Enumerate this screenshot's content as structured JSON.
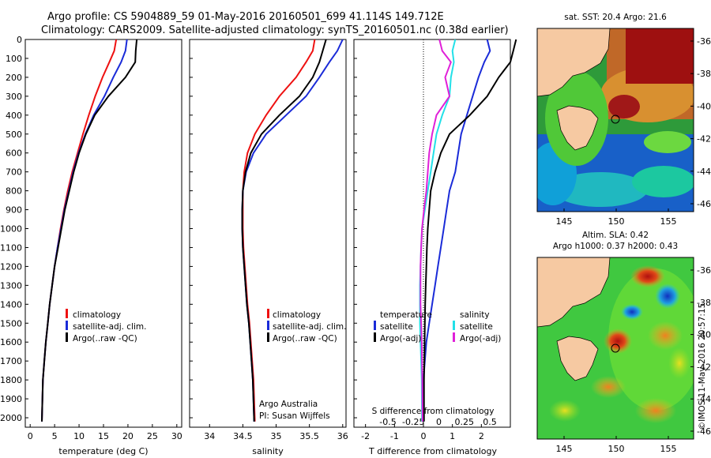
{
  "title": {
    "line1": "Argo profile: CS 5904889_59 01-May-2016 20160501_699 41.114S 149.712E",
    "line2": "Climatology: CARS2009. Satellite-adjusted climatology: synTS_20160501.nc (0.38d earlier)"
  },
  "colors": {
    "clim": "#ee1111",
    "sat": "#1a2bd8",
    "argo": "#000000",
    "sat_s": "#22e0e8",
    "argo_s": "#e020d8",
    "land": "#f6c9a2"
  },
  "chart_data": [
    {
      "type": "line",
      "panel": "temperature",
      "xlabel": "temperature (deg C)",
      "xticks": [
        0,
        5,
        10,
        15,
        20,
        25,
        30
      ],
      "xlim": [
        -1,
        31
      ],
      "ylim": [
        2050,
        0
      ],
      "yticks": [
        0,
        100,
        200,
        300,
        400,
        500,
        600,
        700,
        800,
        900,
        1000,
        1100,
        1200,
        1300,
        1400,
        1500,
        1600,
        1700,
        1800,
        1900,
        2000
      ],
      "legend": [
        "climatology",
        "satellite-adj. clim.",
        "Argo(..raw -QC)"
      ],
      "series": [
        {
          "name": "climatology",
          "color_key": "clim",
          "x": [
            17.6,
            17.2,
            16.2,
            14.8,
            13.3,
            12.0,
            10.8,
            9.7,
            8.6,
            7.7,
            6.9,
            6.2,
            5.6,
            5.0,
            4.5,
            4.0,
            3.6,
            3.2,
            2.9,
            2.6,
            2.4
          ],
          "y": [
            0,
            60,
            120,
            200,
            300,
            400,
            500,
            600,
            700,
            800,
            900,
            1000,
            1100,
            1200,
            1300,
            1400,
            1500,
            1600,
            1700,
            1800,
            2020
          ]
        },
        {
          "name": "satellite-adj. clim.",
          "color_key": "sat",
          "x": [
            19.8,
            19.5,
            18.6,
            17.0,
            15.2,
            13.0,
            11.3,
            9.9,
            8.8,
            7.9,
            7.0,
            6.3,
            5.6,
            5.0,
            4.5,
            4.0,
            3.6,
            3.2,
            2.9,
            2.6,
            2.4
          ],
          "y": [
            0,
            60,
            120,
            200,
            300,
            400,
            500,
            600,
            700,
            800,
            900,
            1000,
            1100,
            1200,
            1300,
            1400,
            1500,
            1600,
            1700,
            1800,
            2020
          ]
        },
        {
          "name": "Argo(..raw -QC)",
          "color_key": "argo",
          "x": [
            21.8,
            21.6,
            21.5,
            19.5,
            16.0,
            13.2,
            11.4,
            10.0,
            8.9,
            8.0,
            7.1,
            6.4,
            5.7,
            5.0,
            4.5,
            4.0,
            3.6,
            3.2,
            2.9,
            2.6,
            2.4
          ],
          "y": [
            0,
            60,
            120,
            200,
            300,
            400,
            500,
            600,
            700,
            800,
            900,
            1000,
            1100,
            1200,
            1300,
            1400,
            1500,
            1600,
            1700,
            1800,
            2020
          ]
        }
      ]
    },
    {
      "type": "line",
      "panel": "salinity",
      "xlabel": "salinity",
      "xticks": [
        34,
        34.5,
        35,
        35.5,
        36
      ],
      "xlim": [
        33.7,
        36.05
      ],
      "ylim": [
        2050,
        0
      ],
      "legend": [
        "climatology",
        "satellite-adj. clim.",
        "Argo(..raw -QC)"
      ],
      "annotation": [
        "Argo Australia",
        "PI: Susan Wijffels"
      ],
      "series": [
        {
          "name": "climatology",
          "color_key": "clim",
          "x": [
            35.58,
            35.55,
            35.45,
            35.3,
            35.05,
            34.85,
            34.68,
            34.57,
            34.52,
            34.5,
            34.5,
            34.5,
            34.51,
            34.53,
            34.55,
            34.57,
            34.6,
            34.62,
            34.64,
            34.66,
            34.68
          ],
          "y": [
            0,
            60,
            120,
            200,
            300,
            400,
            500,
            600,
            700,
            800,
            900,
            1000,
            1100,
            1200,
            1300,
            1400,
            1500,
            1600,
            1700,
            1800,
            2020
          ]
        },
        {
          "name": "satellite-adj. clim.",
          "color_key": "sat",
          "x": [
            36.0,
            35.92,
            35.8,
            35.65,
            35.45,
            35.15,
            34.85,
            34.66,
            34.55,
            34.5,
            34.49,
            34.49,
            34.5,
            34.52,
            34.54,
            34.56,
            34.59,
            34.61,
            34.63,
            34.65,
            34.67
          ],
          "y": [
            0,
            60,
            120,
            200,
            300,
            400,
            500,
            600,
            700,
            800,
            900,
            1000,
            1100,
            1200,
            1300,
            1400,
            1500,
            1600,
            1700,
            1800,
            2020
          ]
        },
        {
          "name": "Argo(..raw -QC)",
          "color_key": "argo",
          "x": [
            35.75,
            35.7,
            35.65,
            35.55,
            35.35,
            35.05,
            34.78,
            34.62,
            34.54,
            34.5,
            34.49,
            34.49,
            34.5,
            34.52,
            34.54,
            34.56,
            34.59,
            34.61,
            34.63,
            34.65,
            34.67
          ],
          "y": [
            0,
            60,
            120,
            200,
            300,
            400,
            500,
            600,
            700,
            800,
            900,
            1000,
            1100,
            1200,
            1300,
            1400,
            1500,
            1600,
            1700,
            1800,
            2020
          ]
        }
      ]
    },
    {
      "type": "line",
      "panel": "difference",
      "xlabel": "T difference from climatology",
      "xlabel_top": "S difference from climatology",
      "xticks": [
        -2,
        -1,
        0,
        1,
        2
      ],
      "xlim": [
        -2.4,
        3.0
      ],
      "xticks_top": [
        "-0.5",
        "-0.25",
        "0",
        "0.25",
        "0.5"
      ],
      "ylim": [
        2050,
        0
      ],
      "legend_left_title": "temperature",
      "legend_right_title": "salinity",
      "legend": [
        "satellite",
        "Argo(-adj)",
        "satellite",
        "Argo(-adj)"
      ],
      "series": [
        {
          "name": "satellite",
          "group": "temperature",
          "color_key": "sat",
          "x": [
            2.2,
            2.3,
            2.1,
            1.9,
            1.7,
            1.5,
            1.3,
            1.2,
            1.1,
            0.9,
            0.8,
            0.7,
            0.6,
            0.5,
            0.4,
            0.3,
            0.2,
            0.1,
            0.05,
            0.0,
            0.0
          ],
          "y": [
            0,
            60,
            120,
            200,
            300,
            400,
            500,
            600,
            700,
            800,
            900,
            1000,
            1100,
            1200,
            1300,
            1400,
            1500,
            1600,
            1700,
            1800,
            2020
          ]
        },
        {
          "name": "Argo(-adj)",
          "group": "temperature",
          "color_key": "argo",
          "x": [
            3.2,
            3.1,
            3.0,
            2.6,
            2.2,
            1.6,
            0.9,
            0.6,
            0.4,
            0.25,
            0.2,
            0.15,
            0.12,
            0.1,
            0.08,
            0.06,
            0.05,
            0.04,
            0.03,
            0.02,
            0.02
          ],
          "y": [
            0,
            60,
            120,
            200,
            300,
            400,
            500,
            600,
            700,
            800,
            900,
            1000,
            1100,
            1200,
            1300,
            1400,
            1500,
            1600,
            1700,
            1800,
            2020
          ]
        },
        {
          "name": "satellite",
          "group": "salinity",
          "color_key": "sat_s",
          "x": [
            1.1,
            1.0,
            1.05,
            0.95,
            0.9,
            0.65,
            0.45,
            0.35,
            0.25,
            0.15,
            0.05,
            -0.05,
            -0.08,
            -0.1,
            -0.12,
            -0.12,
            -0.12,
            -0.1,
            -0.08,
            -0.06,
            -0.05
          ],
          "y": [
            0,
            60,
            120,
            200,
            300,
            400,
            500,
            600,
            700,
            800,
            900,
            1000,
            1100,
            1200,
            1300,
            1400,
            1500,
            1600,
            1700,
            1800,
            2020
          ]
        },
        {
          "name": "Argo(-adj)",
          "group": "salinity",
          "color_key": "argo_s",
          "x": [
            0.55,
            0.65,
            0.95,
            0.75,
            0.9,
            0.45,
            0.3,
            0.2,
            0.15,
            0.1,
            0.02,
            -0.05,
            -0.08,
            -0.1,
            -0.1,
            -0.1,
            -0.08,
            -0.06,
            -0.05,
            -0.04,
            -0.03
          ],
          "y": [
            0,
            60,
            120,
            200,
            300,
            400,
            500,
            600,
            700,
            800,
            900,
            1000,
            1100,
            1200,
            1300,
            1400,
            1500,
            1600,
            1700,
            1800,
            2020
          ]
        }
      ]
    }
  ],
  "maps": [
    {
      "title": "sat. SST: 20.4  Argo: 21.6",
      "xticks": [
        "145",
        "150",
        "155"
      ],
      "yticks": [
        "-36",
        "-38",
        "-40",
        "-42",
        "-44",
        "-46"
      ]
    },
    {
      "title_line1": "Altim. SLA: 0.42",
      "title_line2": "Argo h1000: 0.37 h2000: 0.43",
      "xticks": [
        "145",
        "150",
        "155"
      ],
      "yticks": [
        "-36",
        "-38",
        "-40",
        "-42",
        "-44",
        "-46"
      ]
    }
  ],
  "credit": "©IMOS 11-May-2016 20:57:15"
}
